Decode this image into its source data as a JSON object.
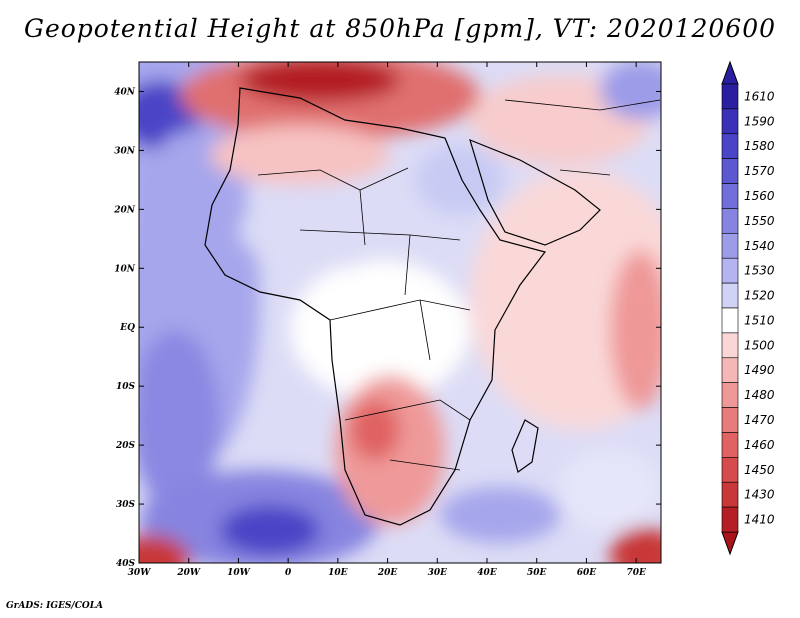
{
  "title": "Geopotential Height at 850hPa [gpm], VT: 2020120600",
  "footer": "GrADS: IGES/COLA",
  "map": {
    "lon_range": [
      -30,
      75
    ],
    "lat_range": [
      -40,
      45
    ],
    "lon_ticks": [
      {
        "value": -30,
        "label": "30W"
      },
      {
        "value": -20,
        "label": "20W"
      },
      {
        "value": -10,
        "label": "10W"
      },
      {
        "value": 0,
        "label": "0"
      },
      {
        "value": 10,
        "label": "10E"
      },
      {
        "value": 20,
        "label": "20E"
      },
      {
        "value": 30,
        "label": "30E"
      },
      {
        "value": 40,
        "label": "40E"
      },
      {
        "value": 50,
        "label": "50E"
      },
      {
        "value": 60,
        "label": "60E"
      },
      {
        "value": 70,
        "label": "70E"
      }
    ],
    "lat_ticks": [
      {
        "value": 40,
        "label": "40N"
      },
      {
        "value": 30,
        "label": "30N"
      },
      {
        "value": 20,
        "label": "20N"
      },
      {
        "value": 10,
        "label": "10N"
      },
      {
        "value": 0,
        "label": "EQ"
      },
      {
        "value": -10,
        "label": "10S"
      },
      {
        "value": -20,
        "label": "20S"
      },
      {
        "value": -30,
        "label": "30S"
      },
      {
        "value": -40,
        "label": "40S"
      }
    ]
  },
  "colorbar": {
    "top_arrow_color": "#2a1fa0",
    "bottom_arrow_color": "#a8141a",
    "levels": [
      {
        "label": "1610",
        "color": "#2a1fa0"
      },
      {
        "label": "1590",
        "color": "#3a31b8"
      },
      {
        "label": "1580",
        "color": "#4a45c6"
      },
      {
        "label": "1570",
        "color": "#5c59d0"
      },
      {
        "label": "1560",
        "color": "#706ed8"
      },
      {
        "label": "1550",
        "color": "#8684e0"
      },
      {
        "label": "1540",
        "color": "#9c9ce8"
      },
      {
        "label": "1530",
        "color": "#b4b4f0"
      },
      {
        "label": "1520",
        "color": "#d0d2f6"
      },
      {
        "label": "1510",
        "color": "#ffffff"
      },
      {
        "label": "1500",
        "color": "#fad6d6"
      },
      {
        "label": "1490",
        "color": "#f5b6b6"
      },
      {
        "label": "1480",
        "color": "#ef9898"
      },
      {
        "label": "1470",
        "color": "#e87c7c"
      },
      {
        "label": "1460",
        "color": "#e06262"
      },
      {
        "label": "1450",
        "color": "#d64c4c"
      },
      {
        "label": "1430",
        "color": "#c83838"
      },
      {
        "label": "1410",
        "color": "#b41f24"
      }
    ]
  }
}
